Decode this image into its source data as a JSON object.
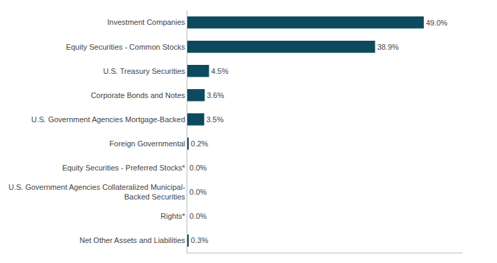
{
  "chart_data": {
    "type": "bar",
    "orientation": "horizontal",
    "categories": [
      "Investment Companies",
      "Equity Securities - Common Stocks",
      "U.S. Treasury Securities",
      "Corporate Bonds and Notes",
      "U.S. Government Agencies Mortgage-Backed",
      "Foreign Governmental",
      "Equity Securities - Preferred Stocks*",
      "U.S. Government Agencies Collateralized Municipal-\nBacked Securities",
      "Rights*",
      "Net Other Assets and Liabilities"
    ],
    "values": [
      49.0,
      38.9,
      4.5,
      3.6,
      3.5,
      0.2,
      0.0,
      0.0,
      0.0,
      0.3
    ],
    "value_labels": [
      "49.0%",
      "38.9%",
      "4.5%",
      "3.6%",
      "3.5%",
      "0.2%",
      "0.0%",
      "0.0%",
      "0.0%",
      "0.3%"
    ],
    "color": "#0d4a5e",
    "xlim": [
      0,
      57
    ],
    "data_labels": true,
    "tick_labels": "y",
    "grid": false
  }
}
